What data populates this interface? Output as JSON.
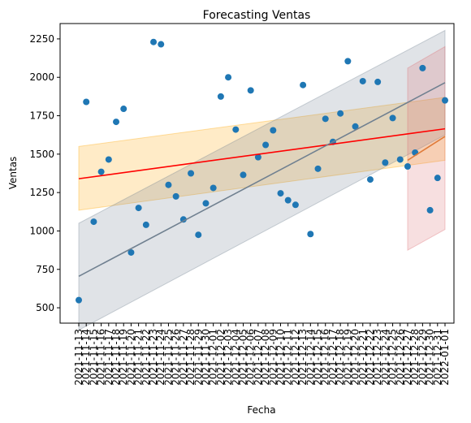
{
  "chart_data": {
    "type": "scatter",
    "title": "Forecasting Ventas",
    "xlabel": "Fecha",
    "ylabel": "Ventas",
    "ylim": [
      400,
      2350
    ],
    "yticks": [
      500,
      750,
      1000,
      1250,
      1500,
      1750,
      2000,
      2250
    ],
    "dates": [
      "2021-11-13",
      "2021-11-14",
      "2021-11-15",
      "2021-11-16",
      "2021-11-17",
      "2021-11-18",
      "2021-11-19",
      "2021-11-20",
      "2021-11-21",
      "2021-11-22",
      "2021-11-23",
      "2021-11-24",
      "2021-11-25",
      "2021-11-26",
      "2021-11-27",
      "2021-11-28",
      "2021-11-29",
      "2021-11-30",
      "2021-12-01",
      "2021-12-02",
      "2021-12-03",
      "2021-12-04",
      "2021-12-05",
      "2021-12-06",
      "2021-12-07",
      "2021-12-08",
      "2021-12-09",
      "2021-12-10",
      "2021-12-11",
      "2021-12-12",
      "2021-12-13",
      "2021-12-14",
      "2021-12-15",
      "2021-12-16",
      "2021-12-17",
      "2021-12-18",
      "2021-12-19",
      "2021-12-20",
      "2021-12-21",
      "2021-12-22",
      "2021-12-23",
      "2021-12-24",
      "2021-12-25",
      "2021-12-26",
      "2021-12-27",
      "2021-12-28",
      "2021-12-29",
      "2021-12-30",
      "2021-12-31",
      "2022-01-01"
    ],
    "series": [
      {
        "kind": "scatter",
        "color": "#1f77b4",
        "values": [
          550,
          1840,
          1060,
          1385,
          1465,
          1710,
          1795,
          860,
          1150,
          1040,
          2230,
          2215,
          1300,
          1225,
          1075,
          1375,
          975,
          1180,
          1280,
          1875,
          2000,
          1660,
          1365,
          1915,
          1480,
          1560,
          1655,
          1245,
          1200,
          1170,
          1950,
          980,
          1405,
          1730,
          1580,
          1765,
          2105,
          1680,
          1975,
          1335,
          1970,
          1445,
          1735,
          1465,
          1420,
          1510,
          2060,
          1135,
          1345,
          1850
        ]
      },
      {
        "kind": "line",
        "color": "#ff0000",
        "x": [
          "2021-11-13",
          "2022-01-01"
        ],
        "values": [
          1340,
          1665
        ]
      },
      {
        "kind": "band",
        "color": "#ffa500",
        "x": [
          "2021-11-13",
          "2022-01-01"
        ],
        "lower": [
          1135,
          1460
        ],
        "upper": [
          1550,
          1870
        ]
      },
      {
        "kind": "line",
        "color": "#708090",
        "x": [
          "2021-11-13",
          "2022-01-01"
        ],
        "values": [
          705,
          1965
        ]
      },
      {
        "kind": "band",
        "color": "#708090",
        "x": [
          "2021-11-13",
          "2022-01-01"
        ],
        "lower": [
          355,
          1625
        ],
        "upper": [
          1050,
          2305
        ]
      },
      {
        "kind": "line",
        "color": "#e07b39",
        "x": [
          "2021-12-27",
          "2022-01-01"
        ],
        "values": [
          1460,
          1615
        ]
      },
      {
        "kind": "band",
        "color": "#dc6e72",
        "x": [
          "2021-12-27",
          "2022-01-01"
        ],
        "lower": [
          875,
          1010
        ],
        "upper": [
          2060,
          2200
        ]
      }
    ]
  }
}
